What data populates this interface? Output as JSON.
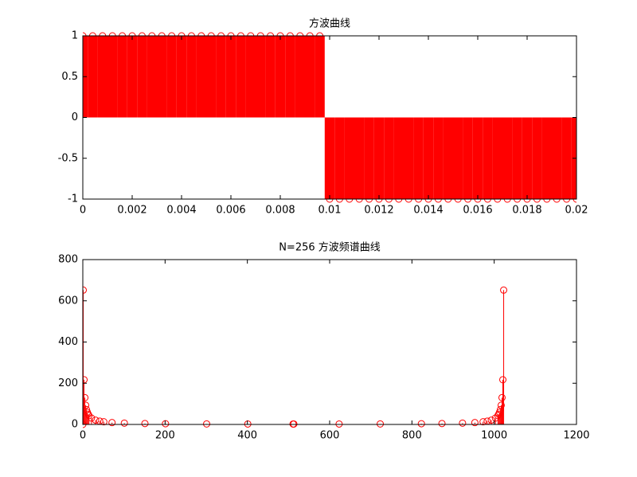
{
  "chart_data": [
    {
      "type": "stem",
      "title": "方波曲线",
      "color": "#ff0000",
      "x": [
        0,
        0.0004,
        0.0008,
        0.0012,
        0.0016,
        0.002,
        0.0024,
        0.0028,
        0.0032,
        0.0036,
        0.004,
        0.0044,
        0.0048,
        0.0052,
        0.0056,
        0.006,
        0.0064,
        0.0068,
        0.0072,
        0.0076,
        0.008,
        0.0084,
        0.0088,
        0.0092,
        0.0096,
        0.01,
        0.0104,
        0.0108,
        0.0112,
        0.0116,
        0.012,
        0.0124,
        0.0128,
        0.0132,
        0.0136,
        0.014,
        0.0144,
        0.0148,
        0.0152,
        0.0156,
        0.016,
        0.0164,
        0.0168,
        0.0172,
        0.0176,
        0.018,
        0.0184,
        0.0188,
        0.0192,
        0.0196,
        0.02
      ],
      "values": [
        1,
        1,
        1,
        1,
        1,
        1,
        1,
        1,
        1,
        1,
        1,
        1,
        1,
        1,
        1,
        1,
        1,
        1,
        1,
        1,
        1,
        1,
        1,
        1,
        1,
        -1,
        -1,
        -1,
        -1,
        -1,
        -1,
        -1,
        -1,
        -1,
        -1,
        -1,
        -1,
        -1,
        -1,
        -1,
        -1,
        -1,
        -1,
        -1,
        -1,
        -1,
        -1,
        -1,
        -1,
        -1,
        -1
      ],
      "xlim": [
        0,
        0.02
      ],
      "xticks": [
        0,
        0.002,
        0.004,
        0.006,
        0.008,
        0.01,
        0.012,
        0.014,
        0.016,
        0.018,
        0.02
      ],
      "ylim": [
        -1,
        1
      ],
      "yticks": [
        -1,
        -0.5,
        0,
        0.5,
        1
      ]
    },
    {
      "type": "stem",
      "title": "N=256 方波频谱曲线",
      "color": "#ff0000",
      "x": [
        0,
        1,
        3,
        5,
        7,
        9,
        11,
        13,
        15,
        21,
        31,
        41,
        51,
        71,
        101,
        151,
        201,
        301,
        401,
        511,
        513,
        623,
        723,
        823,
        873,
        923,
        953,
        973,
        983,
        993,
        1003,
        1009,
        1011,
        1013,
        1015,
        1017,
        1019,
        1021,
        1023
      ],
      "values": [
        0,
        652,
        217,
        130,
        93,
        72,
        59,
        50,
        43,
        31,
        21,
        16,
        13,
        9,
        6.5,
        4.5,
        3.6,
        2.5,
        2.1,
        2,
        2,
        2.1,
        2.5,
        3.6,
        4.5,
        6.5,
        9,
        13,
        16,
        21,
        31,
        43,
        50,
        59,
        72,
        93,
        130,
        217,
        652
      ],
      "xlim": [
        0,
        1200
      ],
      "xticks": [
        0,
        200,
        400,
        600,
        800,
        1000,
        1200
      ],
      "ylim": [
        0,
        800
      ],
      "yticks": [
        0,
        200,
        400,
        600,
        800
      ]
    }
  ]
}
